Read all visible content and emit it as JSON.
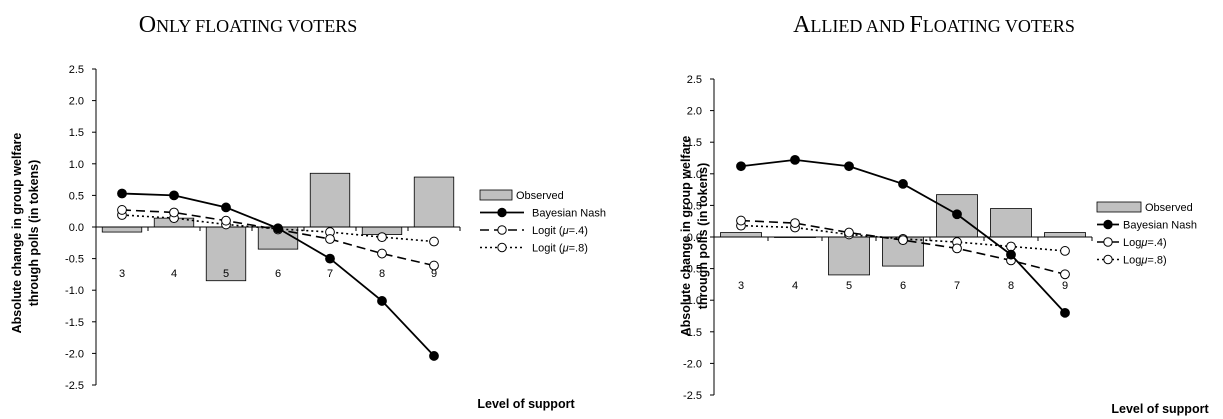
{
  "chart_data": [
    {
      "type": "bar+line",
      "title_big1": "O",
      "title_small1": "NLY FLOATING VOTERS",
      "ylabel_line1": "Absolute change in group welfare",
      "ylabel_line2": "through polls (in tokens)",
      "xlabel": "Level of support",
      "categories": [
        "3",
        "4",
        "5",
        "6",
        "7",
        "8",
        "9"
      ],
      "ylim": [
        -2.5,
        2.5
      ],
      "yticks": [
        "2.5",
        "2.0",
        "1.5",
        "1.0",
        "0.5",
        "0.0",
        "-0.5",
        "-1.0",
        "-1.5",
        "-2.0",
        "-2.5"
      ],
      "series": [
        {
          "name": "Observed",
          "kind": "bar",
          "values": [
            -0.08,
            0.14,
            -0.85,
            -0.35,
            0.85,
            -0.12,
            0.79
          ]
        },
        {
          "name": "Bayesian Nash",
          "kind": "line-solid",
          "values": [
            0.53,
            0.5,
            0.31,
            -0.02,
            -0.5,
            -1.17,
            -2.04
          ]
        },
        {
          "name_prefix": "Logit (",
          "name_mu": "μ",
          "name_suffix": "=.4)",
          "kind": "line-dash",
          "values": [
            0.27,
            0.23,
            0.1,
            -0.04,
            -0.19,
            -0.42,
            -0.61
          ]
        },
        {
          "name_prefix": "Logit (",
          "name_mu": "μ",
          "name_suffix": "=.8)",
          "kind": "line-dot",
          "values": [
            0.19,
            0.14,
            0.04,
            -0.03,
            -0.08,
            -0.16,
            -0.23
          ]
        }
      ]
    },
    {
      "type": "bar+line",
      "title_big1": "A",
      "title_small1": "LLIED AND ",
      "title_big2": "F",
      "title_small2": "LOATING VOTERS",
      "ylabel_line1": "Absolute change in group welfare",
      "ylabel_line2": "through polls (in tokens)",
      "xlabel": "Level of support",
      "categories": [
        "3",
        "4",
        "5",
        "6",
        "7",
        "8",
        "9"
      ],
      "ylim": [
        -2.5,
        2.5
      ],
      "yticks": [
        "2.5",
        "2.0",
        "1.5",
        "1.0",
        "0.5",
        "0.0",
        "-0.5",
        "-1.0",
        "-1.5",
        "-2.0",
        "-2.5"
      ],
      "series": [
        {
          "name": "Observed",
          "kind": "bar",
          "values": [
            0.07,
            0.0,
            -0.6,
            -0.46,
            0.67,
            0.45,
            0.07
          ]
        },
        {
          "name": "Bayesian Nash",
          "kind": "line-solid",
          "values": [
            1.12,
            1.22,
            1.12,
            0.84,
            0.36,
            -0.28,
            -1.2
          ]
        },
        {
          "name_prefix": "Log",
          "name_mu": "μ",
          "name_suffix": "=.4)",
          "kind": "line-dash",
          "values": [
            0.26,
            0.22,
            0.07,
            -0.05,
            -0.18,
            -0.37,
            -0.59
          ]
        },
        {
          "name_prefix": "Log",
          "name_mu": "μ",
          "name_suffix": "=.8)",
          "kind": "line-dot",
          "values": [
            0.18,
            0.15,
            0.04,
            -0.03,
            -0.08,
            -0.15,
            -0.22
          ]
        }
      ]
    }
  ]
}
